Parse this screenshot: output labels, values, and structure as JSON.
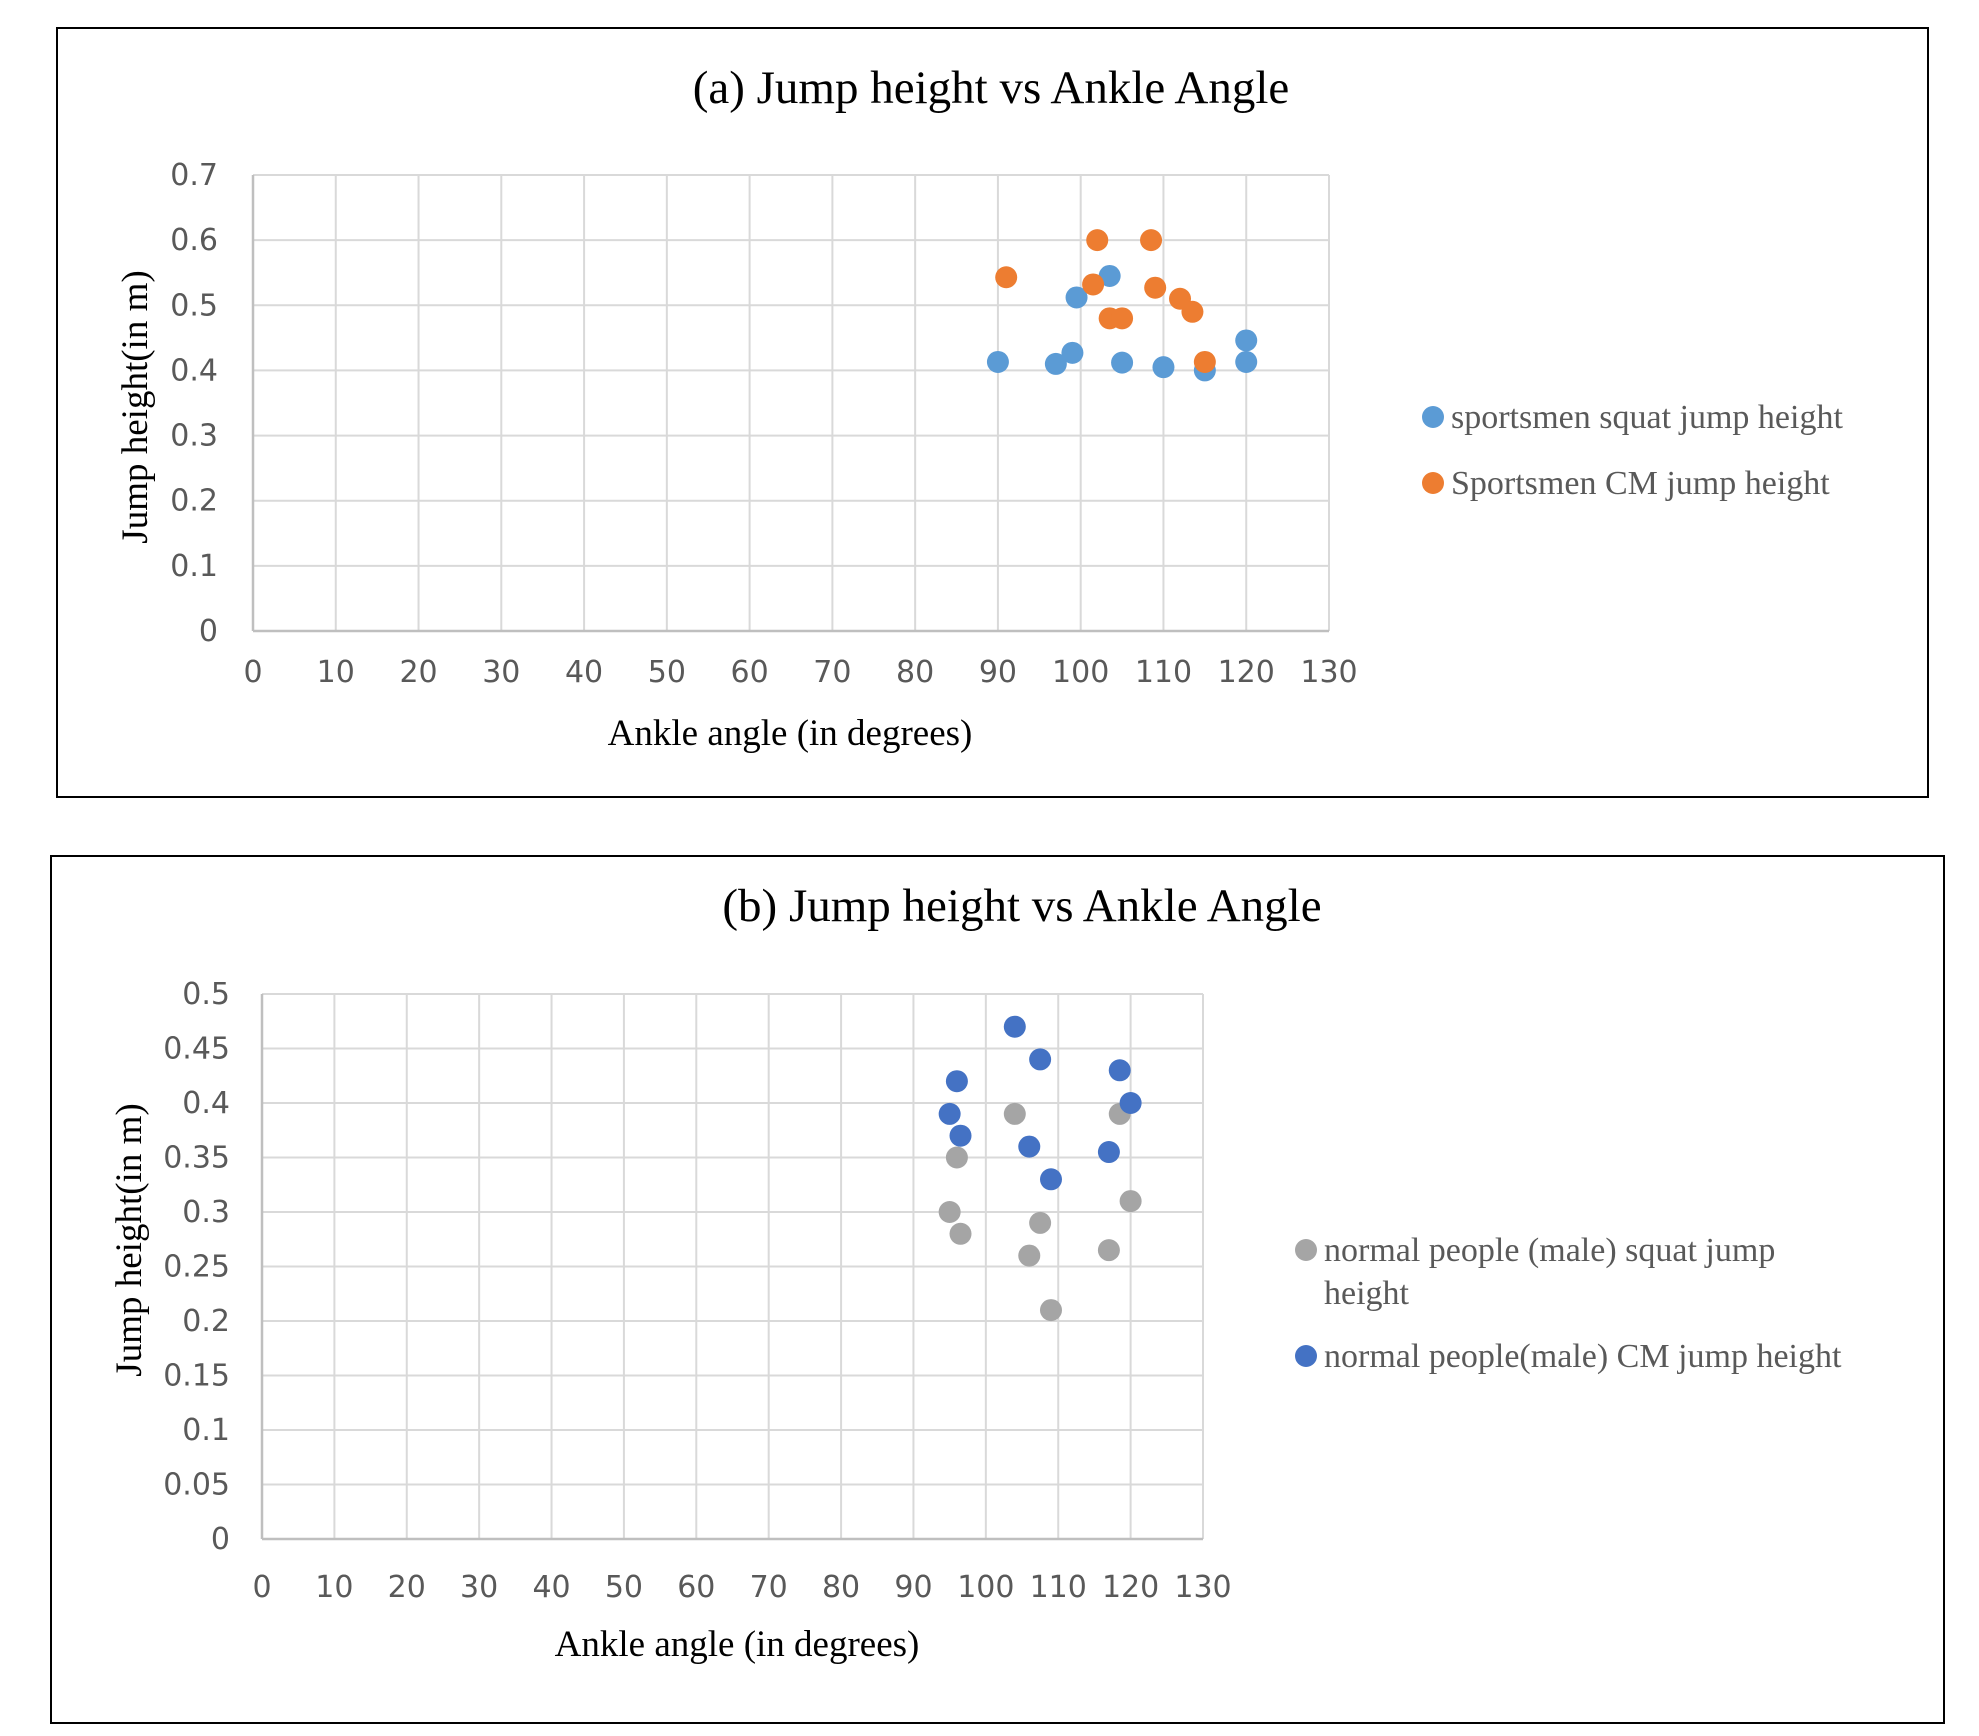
{
  "chart_data": [
    {
      "type": "scatter",
      "title": "(a) Jump height vs Ankle Angle",
      "xlabel": "Ankle angle (in degrees)",
      "ylabel": "Jump height(in m)",
      "xlim": [
        0,
        130
      ],
      "ylim": [
        0,
        0.7
      ],
      "xticks": [
        "0",
        "10",
        "20",
        "30",
        "40",
        "50",
        "60",
        "70",
        "80",
        "90",
        "100",
        "110",
        "120",
        "130"
      ],
      "yticks": [
        "0",
        "0.1",
        "0.2",
        "0.3",
        "0.4",
        "0.5",
        "0.6",
        "0.7"
      ],
      "grid": true,
      "legend_position": "right",
      "series": [
        {
          "name": "sportsmen squat jump height",
          "color": "#5b9bd5",
          "points": [
            [
              90,
              0.413
            ],
            [
              97,
              0.41
            ],
            [
              99,
              0.427
            ],
            [
              99.5,
              0.512
            ],
            [
              103.5,
              0.545
            ],
            [
              105,
              0.412
            ],
            [
              110,
              0.405
            ],
            [
              115,
              0.4
            ],
            [
              120,
              0.413
            ],
            [
              120,
              0.446
            ]
          ]
        },
        {
          "name": "Sportsmen CM jump height",
          "color": "#ed7d31",
          "points": [
            [
              91,
              0.543
            ],
            [
              101.5,
              0.532
            ],
            [
              102,
              0.6
            ],
            [
              103.5,
              0.48
            ],
            [
              105,
              0.48
            ],
            [
              108.5,
              0.6
            ],
            [
              109,
              0.527
            ],
            [
              112,
              0.51
            ],
            [
              113.5,
              0.49
            ],
            [
              115,
              0.413
            ]
          ]
        }
      ]
    },
    {
      "type": "scatter",
      "title": "(b) Jump height vs Ankle Angle",
      "xlabel": "Ankle angle (in degrees)",
      "ylabel": "Jump height(in m)",
      "xlim": [
        0,
        130
      ],
      "ylim": [
        0,
        0.5
      ],
      "xticks": [
        "0",
        "10",
        "20",
        "30",
        "40",
        "50",
        "60",
        "70",
        "80",
        "90",
        "100",
        "110",
        "120",
        "130"
      ],
      "yticks": [
        "0",
        "0.05",
        "0.1",
        "0.15",
        "0.2",
        "0.25",
        "0.3",
        "0.35",
        "0.4",
        "0.45",
        "0.5"
      ],
      "grid": true,
      "legend_position": "right",
      "series": [
        {
          "name": "normal people (male) squat jump height",
          "legend_lines": [
            "normal people (male) squat jump",
            "height"
          ],
          "color": "#a5a5a5",
          "points": [
            [
              95,
              0.3
            ],
            [
              96,
              0.35
            ],
            [
              96.5,
              0.28
            ],
            [
              104,
              0.39
            ],
            [
              106,
              0.26
            ],
            [
              107.5,
              0.29
            ],
            [
              109,
              0.21
            ],
            [
              117,
              0.265
            ],
            [
              118.5,
              0.39
            ],
            [
              120,
              0.31
            ]
          ]
        },
        {
          "name": "normal people(male) CM jump height",
          "color": "#4472c4",
          "points": [
            [
              95,
              0.39
            ],
            [
              96,
              0.42
            ],
            [
              96.5,
              0.37
            ],
            [
              104,
              0.47
            ],
            [
              106,
              0.36
            ],
            [
              107.5,
              0.44
            ],
            [
              109,
              0.33
            ],
            [
              117,
              0.355
            ],
            [
              118.5,
              0.43
            ],
            [
              120,
              0.4
            ]
          ]
        }
      ]
    }
  ]
}
